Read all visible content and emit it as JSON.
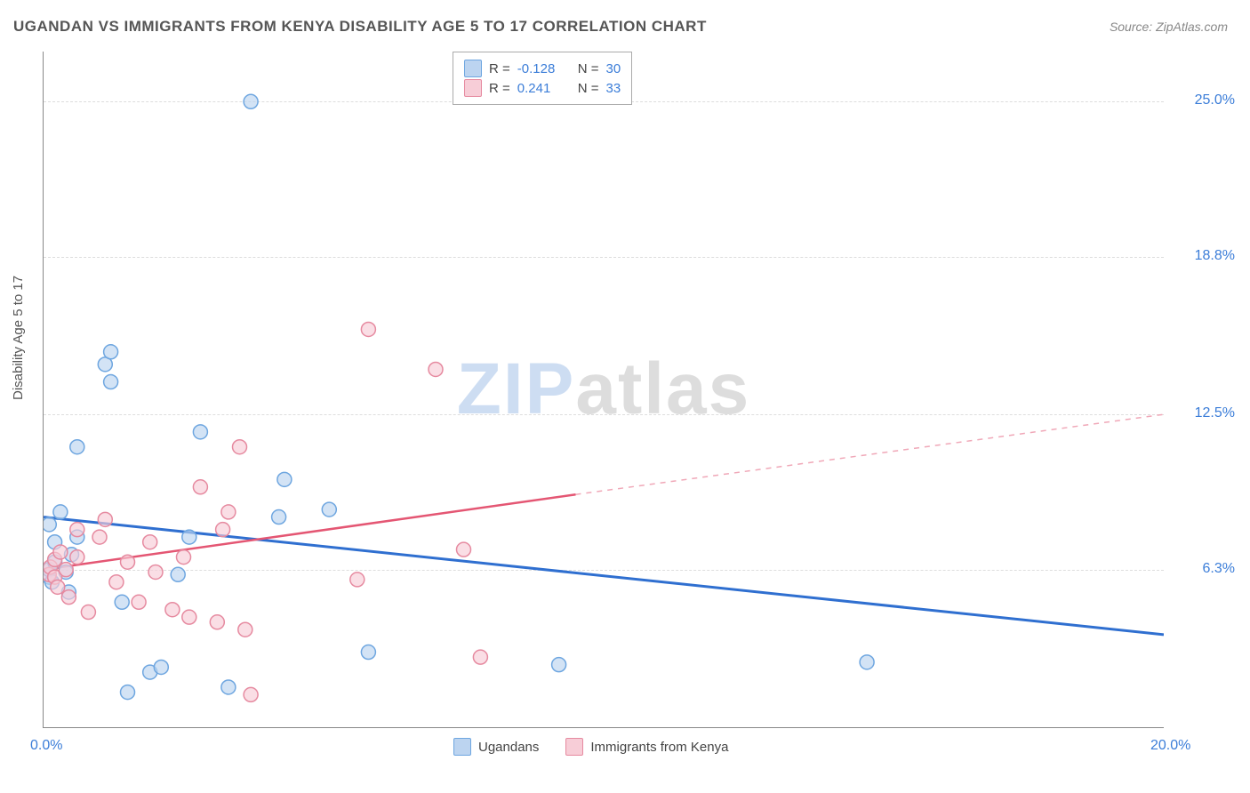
{
  "title": "UGANDAN VS IMMIGRANTS FROM KENYA DISABILITY AGE 5 TO 17 CORRELATION CHART",
  "source": "Source: ZipAtlas.com",
  "ylabel": "Disability Age 5 to 17",
  "watermark_a": "ZIP",
  "watermark_b": "atlas",
  "chart": {
    "type": "scatter-with-regression",
    "background_color": "#ffffff",
    "grid_color": "#dddddd",
    "axis_color": "#888888",
    "xlim": [
      0,
      20
    ],
    "ylim": [
      0,
      27
    ],
    "yticks": [
      {
        "v": 6.3,
        "label": "6.3%",
        "color": "#3b7dd8"
      },
      {
        "v": 12.5,
        "label": "12.5%",
        "color": "#3b7dd8"
      },
      {
        "v": 18.8,
        "label": "18.8%",
        "color": "#3b7dd8"
      },
      {
        "v": 25.0,
        "label": "25.0%",
        "color": "#3b7dd8"
      }
    ],
    "xticks": [
      {
        "v": 0,
        "label": "0.0%",
        "color": "#3b7dd8"
      },
      {
        "v": 20,
        "label": "20.0%",
        "color": "#3b7dd8"
      }
    ],
    "marker_radius": 8,
    "marker_stroke_width": 1.5,
    "series": [
      {
        "name": "Ugandans",
        "fill": "#bcd4f0",
        "stroke": "#6ea6e0",
        "R": "-0.128",
        "N": "30",
        "points": [
          [
            0.1,
            6.0
          ],
          [
            0.1,
            6.3
          ],
          [
            0.15,
            5.8
          ],
          [
            0.2,
            6.6
          ],
          [
            0.2,
            7.4
          ],
          [
            0.1,
            8.1
          ],
          [
            0.3,
            8.6
          ],
          [
            0.4,
            6.2
          ],
          [
            0.5,
            6.9
          ],
          [
            0.45,
            5.4
          ],
          [
            0.6,
            7.6
          ],
          [
            0.6,
            11.2
          ],
          [
            1.1,
            14.5
          ],
          [
            1.2,
            15.0
          ],
          [
            1.2,
            13.8
          ],
          [
            1.4,
            5.0
          ],
          [
            1.5,
            1.4
          ],
          [
            1.9,
            2.2
          ],
          [
            2.1,
            2.4
          ],
          [
            2.4,
            6.1
          ],
          [
            2.6,
            7.6
          ],
          [
            2.8,
            11.8
          ],
          [
            3.3,
            1.6
          ],
          [
            3.7,
            25.0
          ],
          [
            4.2,
            8.4
          ],
          [
            4.3,
            9.9
          ],
          [
            5.1,
            8.7
          ],
          [
            5.8,
            3.0
          ],
          [
            9.2,
            2.5
          ],
          [
            14.7,
            2.6
          ]
        ],
        "regression": {
          "x1": 0,
          "y1": 8.4,
          "x2": 20,
          "y2": 3.7,
          "color": "#2f6fd0",
          "width": 3
        },
        "extrap": null
      },
      {
        "name": "Immigrants from Kenya",
        "fill": "#f7cdd7",
        "stroke": "#e68aa0",
        "R": "0.241",
        "N": "33",
        "points": [
          [
            0.1,
            6.1
          ],
          [
            0.12,
            6.4
          ],
          [
            0.2,
            6.0
          ],
          [
            0.2,
            6.7
          ],
          [
            0.25,
            5.6
          ],
          [
            0.3,
            7.0
          ],
          [
            0.4,
            6.3
          ],
          [
            0.45,
            5.2
          ],
          [
            0.6,
            6.8
          ],
          [
            0.6,
            7.9
          ],
          [
            0.8,
            4.6
          ],
          [
            1.0,
            7.6
          ],
          [
            1.1,
            8.3
          ],
          [
            1.3,
            5.8
          ],
          [
            1.5,
            6.6
          ],
          [
            1.7,
            5.0
          ],
          [
            1.9,
            7.4
          ],
          [
            2.0,
            6.2
          ],
          [
            2.3,
            4.7
          ],
          [
            2.5,
            6.8
          ],
          [
            2.6,
            4.4
          ],
          [
            2.8,
            9.6
          ],
          [
            3.1,
            4.2
          ],
          [
            3.2,
            7.9
          ],
          [
            3.3,
            8.6
          ],
          [
            3.5,
            11.2
          ],
          [
            3.6,
            3.9
          ],
          [
            3.7,
            1.3
          ],
          [
            5.6,
            5.9
          ],
          [
            5.8,
            15.9
          ],
          [
            7.0,
            14.3
          ],
          [
            7.5,
            7.1
          ],
          [
            7.8,
            2.8
          ]
        ],
        "regression": {
          "x1": 0,
          "y1": 6.3,
          "x2": 9.5,
          "y2": 9.3,
          "color": "#e45673",
          "width": 2.5
        },
        "extrap": {
          "x1": 9.5,
          "y1": 9.3,
          "x2": 20,
          "y2": 12.5,
          "color": "#f0a8b8",
          "width": 1.5,
          "dash": "6,6"
        }
      }
    ]
  },
  "legend_top": {
    "rows": [
      {
        "swatch_fill": "#bcd4f0",
        "swatch_stroke": "#6ea6e0",
        "r_label": "R =",
        "r_value": "-0.128",
        "n_label": "N =",
        "n_value": "30"
      },
      {
        "swatch_fill": "#f7cdd7",
        "swatch_stroke": "#e68aa0",
        "r_label": "R =",
        "r_value": "0.241",
        "n_label": "N =",
        "n_value": "33"
      }
    ]
  },
  "legend_bottom": {
    "items": [
      {
        "swatch_fill": "#bcd4f0",
        "swatch_stroke": "#6ea6e0",
        "label": "Ugandans"
      },
      {
        "swatch_fill": "#f7cdd7",
        "swatch_stroke": "#e68aa0",
        "label": "Immigrants from Kenya"
      }
    ]
  }
}
